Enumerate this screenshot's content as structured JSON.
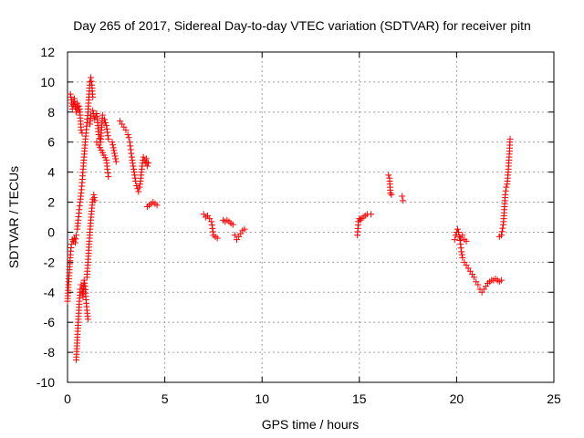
{
  "chart_data": {
    "type": "scatter",
    "title": "Day 265 of 2017, Sidereal Day-to-day VTEC variation (SDTVAR) for receiver pitn",
    "xlabel": "GPS time / hours",
    "ylabel": "SDTVAR / TECUs",
    "xlim": [
      0,
      25
    ],
    "ylim": [
      -10,
      12
    ],
    "xticks": [
      0,
      5,
      10,
      15,
      20,
      25
    ],
    "yticks": [
      -10,
      -8,
      -6,
      -4,
      -2,
      0,
      2,
      4,
      6,
      8,
      10,
      12
    ],
    "grid": true,
    "marker": "plus",
    "series": [
      {
        "name": "SDTVAR",
        "color": "#ff0000",
        "segments": [
          [
            [
              0.0,
              -4.6
            ],
            [
              0.05,
              -3.5
            ],
            [
              0.1,
              -2.5
            ],
            [
              0.15,
              -1.5
            ],
            [
              0.2,
              -0.8
            ],
            [
              0.25,
              -0.5
            ],
            [
              0.3,
              -0.6
            ],
            [
              0.35,
              -0.4
            ],
            [
              0.4,
              -0.7
            ],
            [
              0.45,
              -0.2
            ]
          ],
          [
            [
              0.15,
              9.2
            ],
            [
              0.2,
              8.8
            ],
            [
              0.25,
              8.2
            ],
            [
              0.3,
              8.5
            ],
            [
              0.35,
              8.9
            ],
            [
              0.4,
              8.3
            ],
            [
              0.45,
              8.0
            ],
            [
              0.5,
              8.6
            ],
            [
              0.55,
              8.1
            ],
            [
              0.6,
              8.4
            ],
            [
              0.65,
              7.8
            ],
            [
              0.7,
              6.8
            ],
            [
              0.75,
              6.6
            ]
          ],
          [
            [
              0.45,
              -8.5
            ],
            [
              0.5,
              -7.2
            ],
            [
              0.55,
              -6.0
            ],
            [
              0.6,
              -4.8
            ],
            [
              0.65,
              -3.8
            ],
            [
              0.7,
              -3.5
            ],
            [
              0.75,
              -3.8
            ],
            [
              0.8,
              -4.3
            ],
            [
              0.85,
              -3.2
            ],
            [
              0.9,
              -3.6
            ],
            [
              0.95,
              -4.5
            ],
            [
              1.0,
              -5.2
            ],
            [
              1.05,
              -5.8
            ]
          ],
          [
            [
              0.5,
              0.2
            ],
            [
              0.55,
              0.8
            ],
            [
              0.6,
              1.5
            ],
            [
              0.65,
              2.0
            ],
            [
              0.7,
              2.6
            ],
            [
              0.75,
              3.3
            ],
            [
              0.8,
              4.2
            ],
            [
              0.85,
              5.0
            ],
            [
              0.9,
              5.8
            ],
            [
              0.95,
              6.6
            ],
            [
              1.0,
              7.3
            ],
            [
              1.05,
              8.0
            ],
            [
              1.1,
              9.0
            ],
            [
              1.15,
              10.0
            ],
            [
              1.2,
              10.3
            ],
            [
              1.25,
              9.8
            ],
            [
              1.3,
              9.0
            ]
          ],
          [
            [
              1.0,
              -3.0
            ],
            [
              1.05,
              -2.0
            ],
            [
              1.1,
              -1.0
            ],
            [
              1.15,
              0.0
            ],
            [
              1.2,
              0.8
            ],
            [
              1.25,
              1.6
            ],
            [
              1.3,
              2.2
            ],
            [
              1.35,
              2.5
            ],
            [
              1.4,
              2.1
            ]
          ],
          [
            [
              1.15,
              7.2
            ],
            [
              1.2,
              7.8
            ],
            [
              1.3,
              8.1
            ],
            [
              1.4,
              7.5
            ],
            [
              1.5,
              7.9
            ],
            [
              1.6,
              6.5
            ],
            [
              1.7,
              6.0
            ],
            [
              1.8,
              7.8
            ],
            [
              1.9,
              7.5
            ],
            [
              2.0,
              7.1
            ],
            [
              2.1,
              6.2
            ],
            [
              2.3,
              6.0
            ],
            [
              2.5,
              4.7
            ]
          ],
          [
            [
              1.5,
              6.0
            ],
            [
              1.6,
              5.8
            ],
            [
              2.0,
              4.8
            ],
            [
              2.05,
              4.2
            ],
            [
              2.1,
              3.7
            ]
          ],
          [
            [
              2.7,
              7.4
            ],
            [
              2.8,
              7.2
            ],
            [
              2.9,
              7.0
            ],
            [
              3.0,
              6.8
            ],
            [
              3.1,
              6.5
            ],
            [
              3.15,
              6.3
            ],
            [
              3.2,
              6.0
            ],
            [
              3.25,
              5.5
            ],
            [
              3.3,
              5.0
            ],
            [
              3.35,
              4.6
            ],
            [
              3.4,
              4.2
            ],
            [
              3.45,
              3.8
            ],
            [
              3.5,
              3.4
            ],
            [
              3.55,
              3.1
            ],
            [
              3.6,
              2.9
            ],
            [
              3.65,
              2.7
            ],
            [
              3.7,
              3.0
            ],
            [
              3.75,
              3.4
            ],
            [
              3.8,
              4.0
            ],
            [
              3.85,
              4.6
            ],
            [
              3.9,
              5.0
            ],
            [
              3.95,
              4.8
            ],
            [
              4.0,
              4.6
            ],
            [
              4.05,
              4.9
            ],
            [
              4.1,
              4.4
            ],
            [
              4.15,
              4.6
            ]
          ],
          [
            [
              4.1,
              1.7
            ],
            [
              4.2,
              1.8
            ],
            [
              4.3,
              1.9
            ],
            [
              4.4,
              2.0
            ],
            [
              4.5,
              1.9
            ],
            [
              4.6,
              1.8
            ]
          ],
          [
            [
              7.0,
              1.2
            ],
            [
              7.1,
              1.0
            ],
            [
              7.2,
              1.1
            ],
            [
              7.3,
              0.9
            ],
            [
              7.4,
              0.7
            ],
            [
              7.5,
              -0.2
            ],
            [
              7.6,
              -0.3
            ],
            [
              7.7,
              -0.4
            ]
          ],
          [
            [
              8.0,
              0.8
            ],
            [
              8.1,
              0.7
            ],
            [
              8.2,
              0.8
            ],
            [
              8.3,
              0.7
            ],
            [
              8.4,
              0.6
            ],
            [
              8.5,
              0.5
            ]
          ],
          [
            [
              8.6,
              -0.2
            ],
            [
              8.7,
              -0.5
            ],
            [
              8.8,
              -0.3
            ],
            [
              8.9,
              -0.1
            ],
            [
              9.0,
              0.1
            ],
            [
              9.1,
              0.2
            ]
          ],
          [
            [
              14.9,
              -0.2
            ],
            [
              14.95,
              0.7
            ],
            [
              15.0,
              0.9
            ],
            [
              15.05,
              0.8
            ],
            [
              15.1,
              0.9
            ],
            [
              15.2,
              1.0
            ],
            [
              15.3,
              1.1
            ],
            [
              15.4,
              1.2
            ],
            [
              15.6,
              1.2
            ]
          ],
          [
            [
              16.5,
              3.8
            ],
            [
              16.55,
              3.6
            ],
            [
              16.6,
              2.6
            ],
            [
              16.65,
              2.5
            ]
          ],
          [
            [
              17.2,
              2.4
            ],
            [
              17.25,
              2.1
            ]
          ],
          [
            [
              19.9,
              -0.5
            ],
            [
              19.95,
              -0.2
            ],
            [
              20.0,
              0.0
            ],
            [
              20.05,
              0.2
            ],
            [
              20.1,
              0.0
            ],
            [
              20.15,
              -0.3
            ],
            [
              20.2,
              -0.8
            ],
            [
              20.25,
              -1.3
            ],
            [
              20.3,
              -1.7
            ],
            [
              20.4,
              -2.0
            ],
            [
              20.5,
              -2.2
            ],
            [
              20.6,
              -2.4
            ],
            [
              20.7,
              -2.6
            ],
            [
              20.8,
              -2.8
            ],
            [
              20.9,
              -3.0
            ],
            [
              21.0,
              -3.3
            ],
            [
              21.1,
              -3.5
            ],
            [
              21.2,
              -3.8
            ],
            [
              21.3,
              -4.0
            ],
            [
              21.4,
              -3.8
            ],
            [
              21.5,
              -3.6
            ],
            [
              21.6,
              -3.4
            ],
            [
              21.7,
              -3.3
            ],
            [
              21.8,
              -3.2
            ],
            [
              21.9,
              -3.2
            ],
            [
              22.0,
              -3.1
            ],
            [
              22.1,
              -3.2
            ],
            [
              22.2,
              -3.3
            ],
            [
              22.3,
              -3.2
            ]
          ],
          [
            [
              20.2,
              -0.4
            ],
            [
              20.3,
              -0.2
            ],
            [
              20.4,
              -0.5
            ],
            [
              20.5,
              -0.6
            ]
          ],
          [
            [
              22.2,
              -0.3
            ],
            [
              22.3,
              -0.2
            ],
            [
              22.4,
              0.5
            ],
            [
              22.45,
              1.5
            ],
            [
              22.5,
              2.5
            ],
            [
              22.55,
              3.0
            ],
            [
              22.6,
              3.2
            ],
            [
              22.65,
              4.0
            ],
            [
              22.7,
              5.0
            ],
            [
              22.75,
              6.2
            ]
          ]
        ]
      }
    ]
  }
}
